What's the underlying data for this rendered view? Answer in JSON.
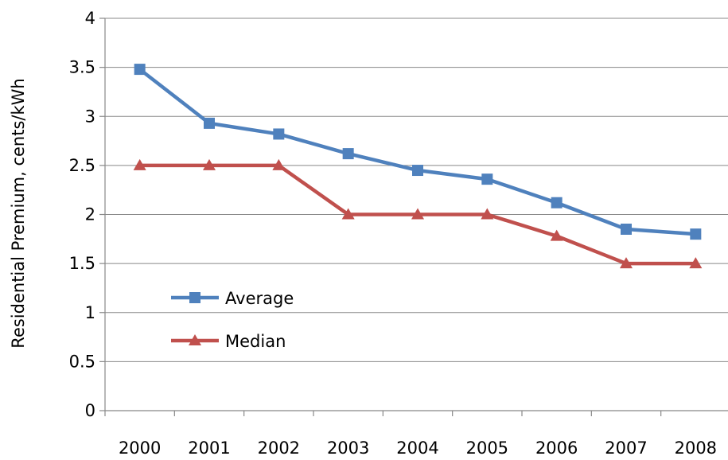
{
  "chart_data": {
    "type": "line",
    "title": "",
    "xlabel": "",
    "ylabel": "Residential Premium, cents/kWh",
    "categories": [
      "2000",
      "2001",
      "2002",
      "2003",
      "2004",
      "2005",
      "2006",
      "2007",
      "2008"
    ],
    "ylim": [
      0,
      4
    ],
    "yticks": [
      "0",
      "0.5",
      "1",
      "1.5",
      "2",
      "2.5",
      "3",
      "3.5",
      "4"
    ],
    "grid": true,
    "legend_position": "lower-left",
    "series": [
      {
        "name": "Average",
        "color": "#4F81BD",
        "marker": "square",
        "values": [
          3.48,
          2.93,
          2.82,
          2.62,
          2.45,
          2.36,
          2.12,
          1.85,
          1.8
        ]
      },
      {
        "name": "Median",
        "color": "#C0504D",
        "marker": "triangle",
        "values": [
          2.5,
          2.5,
          2.5,
          2.0,
          2.0,
          2.0,
          1.78,
          1.5,
          1.5
        ]
      }
    ]
  }
}
